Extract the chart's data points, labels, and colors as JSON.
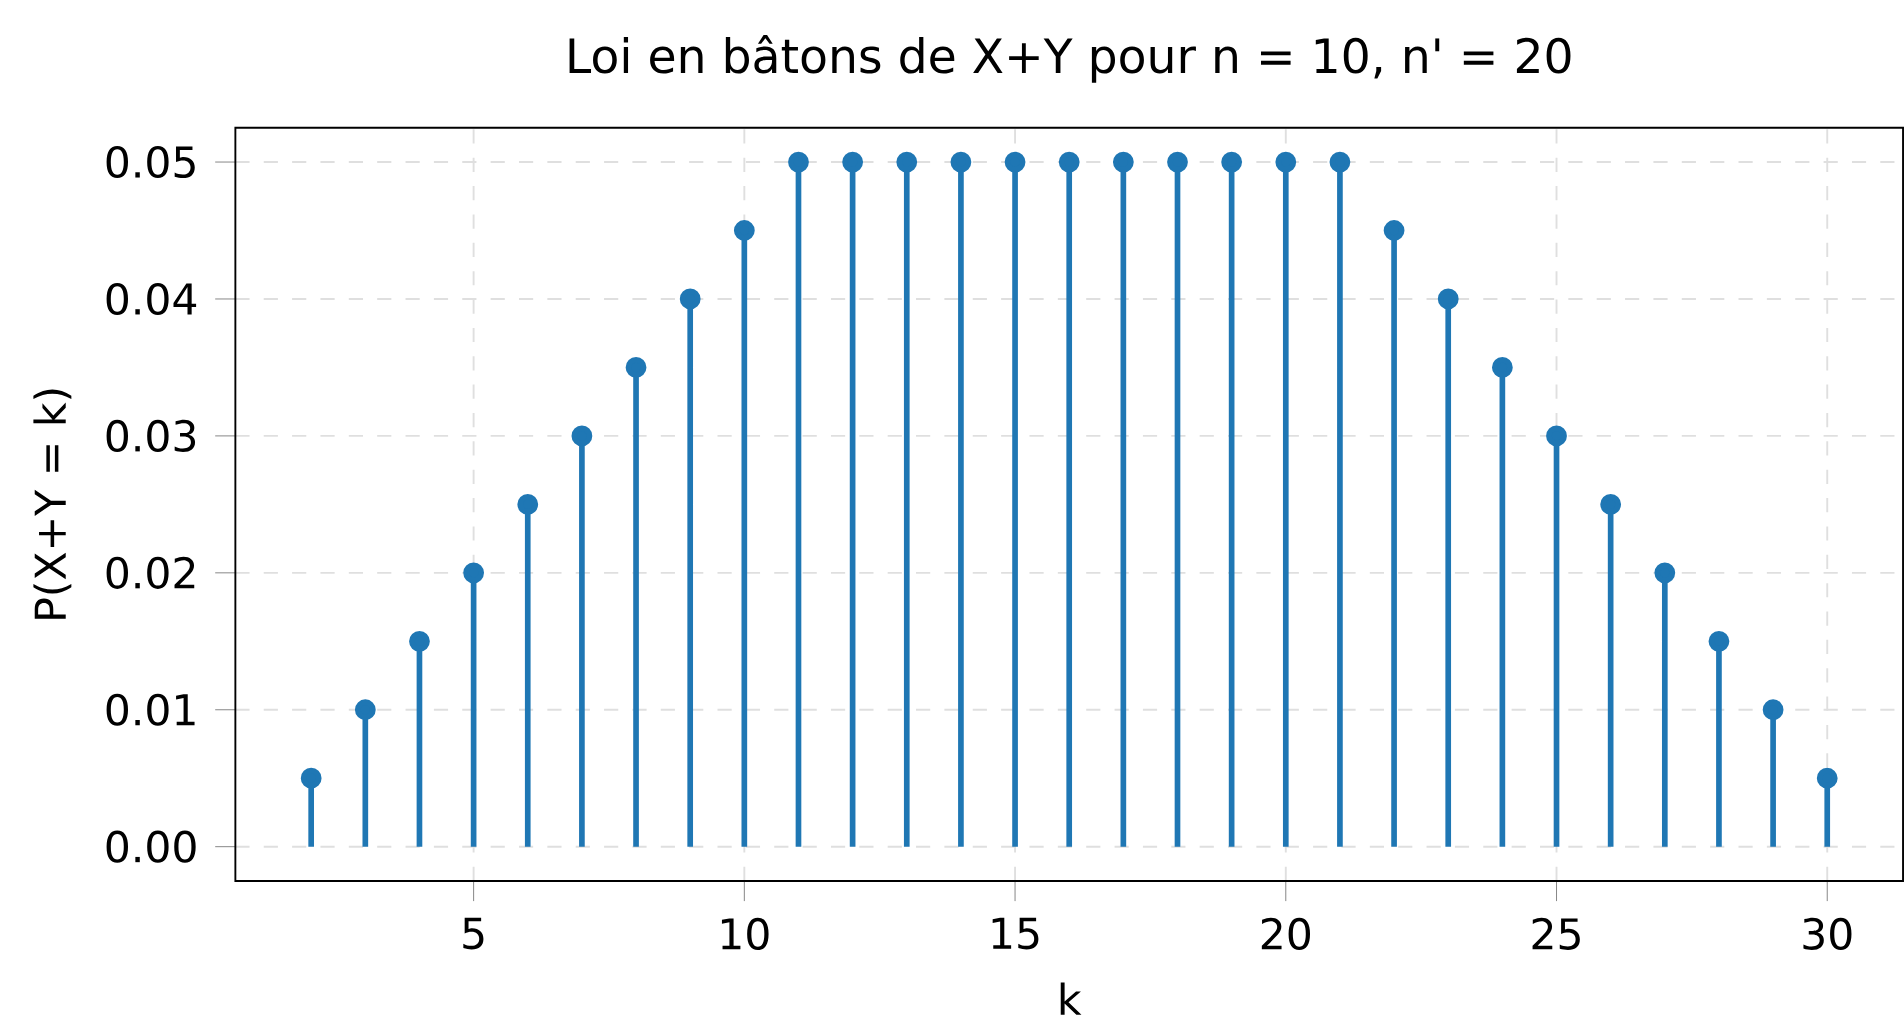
{
  "chart_data": {
    "type": "lollipop",
    "title": "Loi en bâtons de X+Y pour n = 10, n' = 20",
    "xlabel": "k",
    "ylabel": "P(X+Y = k)",
    "x": [
      2,
      3,
      4,
      5,
      6,
      7,
      8,
      9,
      10,
      11,
      12,
      13,
      14,
      15,
      16,
      17,
      18,
      19,
      20,
      21,
      22,
      23,
      24,
      25,
      26,
      27,
      28,
      29,
      30
    ],
    "values": [
      0.005,
      0.01,
      0.015,
      0.02,
      0.025,
      0.03,
      0.035,
      0.04,
      0.045,
      0.05,
      0.05,
      0.05,
      0.05,
      0.05,
      0.05,
      0.05,
      0.05,
      0.05,
      0.05,
      0.05,
      0.045,
      0.04,
      0.035,
      0.03,
      0.025,
      0.02,
      0.015,
      0.01,
      0.005
    ],
    "color": "#1f77b4",
    "marker": "circle",
    "xlim": [
      0.6,
      31.4
    ],
    "ylim": [
      -0.0025,
      0.0525
    ],
    "xticks": [
      5,
      10,
      15,
      20,
      25,
      30
    ],
    "yticks": [
      {
        "value": 0,
        "label": "0.00"
      },
      {
        "value": 0.01,
        "label": "0.01"
      },
      {
        "value": 0.02,
        "label": "0.02"
      },
      {
        "value": 0.03,
        "label": "0.03"
      },
      {
        "value": 0.04,
        "label": "0.04"
      },
      {
        "value": 0.05,
        "label": "0.05"
      }
    ],
    "grid": true
  }
}
